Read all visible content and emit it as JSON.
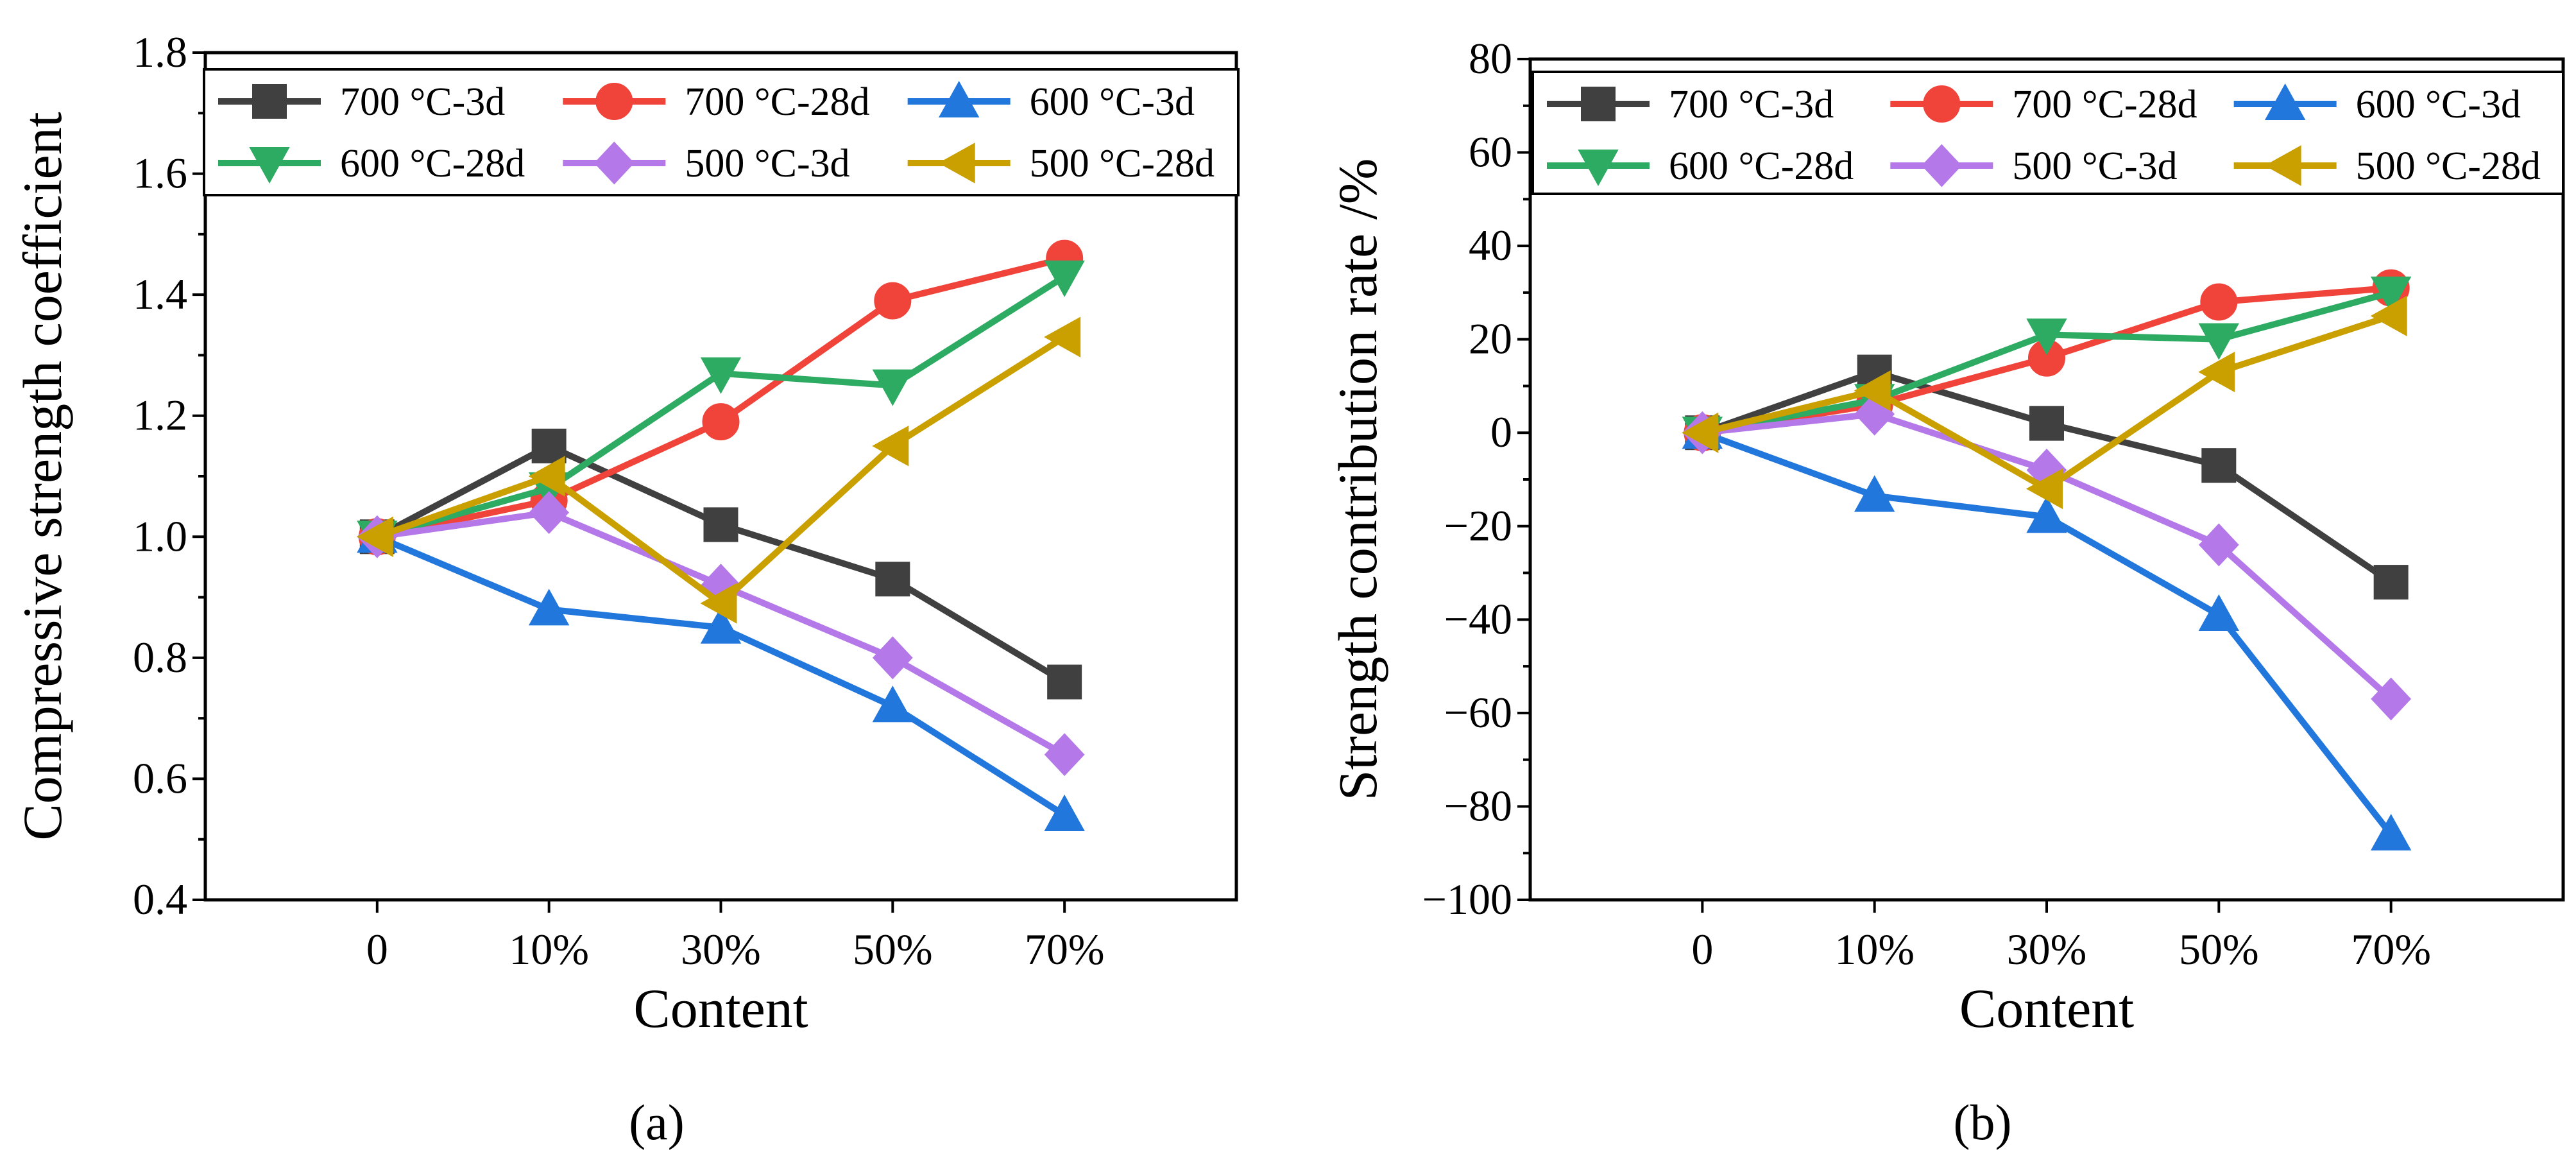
{
  "chart_data": [
    {
      "type": "line",
      "panel_label": "(a)",
      "categories": [
        "0",
        "10%",
        "30%",
        "50%",
        "70%"
      ],
      "xlabel": "Content",
      "ylabel": "Compressive strength coefficient",
      "ylim": [
        0.4,
        1.8
      ],
      "yticks": [
        0.4,
        0.6,
        0.8,
        1.0,
        1.2,
        1.4,
        1.6,
        1.8
      ],
      "ytick_labels": [
        "0.4",
        "0.6",
        "0.8",
        "1.0",
        "1.2",
        "1.4",
        "1.6",
        "1.8"
      ],
      "grid": false,
      "legend_position": "top",
      "series": [
        {
          "name": "700 °C-3d",
          "color": "#404040",
          "marker": "square",
          "values": [
            1.0,
            1.15,
            1.02,
            0.93,
            0.76
          ]
        },
        {
          "name": "700 °C-28d",
          "color": "#f0433a",
          "marker": "circle",
          "values": [
            1.0,
            1.06,
            1.19,
            1.39,
            1.46
          ]
        },
        {
          "name": "600 °C-3d",
          "color": "#2277dd",
          "marker": "triangle-up",
          "values": [
            1.0,
            0.88,
            0.85,
            0.72,
            0.54
          ]
        },
        {
          "name": "600 °C-28d",
          "color": "#2eab62",
          "marker": "triangle-down",
          "values": [
            1.0,
            1.08,
            1.27,
            1.25,
            1.43
          ]
        },
        {
          "name": "500 °C-3d",
          "color": "#b478e8",
          "marker": "diamond",
          "values": [
            1.0,
            1.04,
            0.92,
            0.8,
            0.64
          ]
        },
        {
          "name": "500 °C-28d",
          "color": "#c9a000",
          "marker": "triangle-left",
          "values": [
            1.0,
            1.1,
            0.89,
            1.15,
            1.33
          ]
        }
      ]
    },
    {
      "type": "line",
      "panel_label": "(b)",
      "categories": [
        "0",
        "10%",
        "30%",
        "50%",
        "70%"
      ],
      "xlabel": "Content",
      "ylabel": "Strength contribution rate /%",
      "ylim": [
        -100,
        80
      ],
      "yticks": [
        -100,
        -80,
        -60,
        -40,
        -20,
        0,
        20,
        40,
        60,
        80
      ],
      "ytick_labels": [
        "−100",
        "−80",
        "−60",
        "−40",
        "−20",
        "0",
        "20",
        "40",
        "60",
        "80"
      ],
      "grid": false,
      "legend_position": "top",
      "series": [
        {
          "name": "700 °C-3d",
          "color": "#404040",
          "marker": "square",
          "values": [
            0,
            13,
            2,
            -7,
            -32
          ]
        },
        {
          "name": "700 °C-28d",
          "color": "#f0433a",
          "marker": "circle",
          "values": [
            0,
            6,
            16,
            28,
            31
          ]
        },
        {
          "name": "600 °C-3d",
          "color": "#2277dd",
          "marker": "triangle-up",
          "values": [
            0,
            -13.5,
            -18,
            -39,
            -86
          ]
        },
        {
          "name": "600 °C-28d",
          "color": "#2eab62",
          "marker": "triangle-down",
          "values": [
            0,
            7,
            21,
            20,
            30
          ]
        },
        {
          "name": "500 °C-3d",
          "color": "#b478e8",
          "marker": "diamond",
          "values": [
            0,
            4,
            -8,
            -24,
            -57
          ]
        },
        {
          "name": "500 °C-28d",
          "color": "#c9a000",
          "marker": "triangle-left",
          "values": [
            0,
            9,
            -12,
            13,
            25
          ]
        }
      ]
    }
  ]
}
